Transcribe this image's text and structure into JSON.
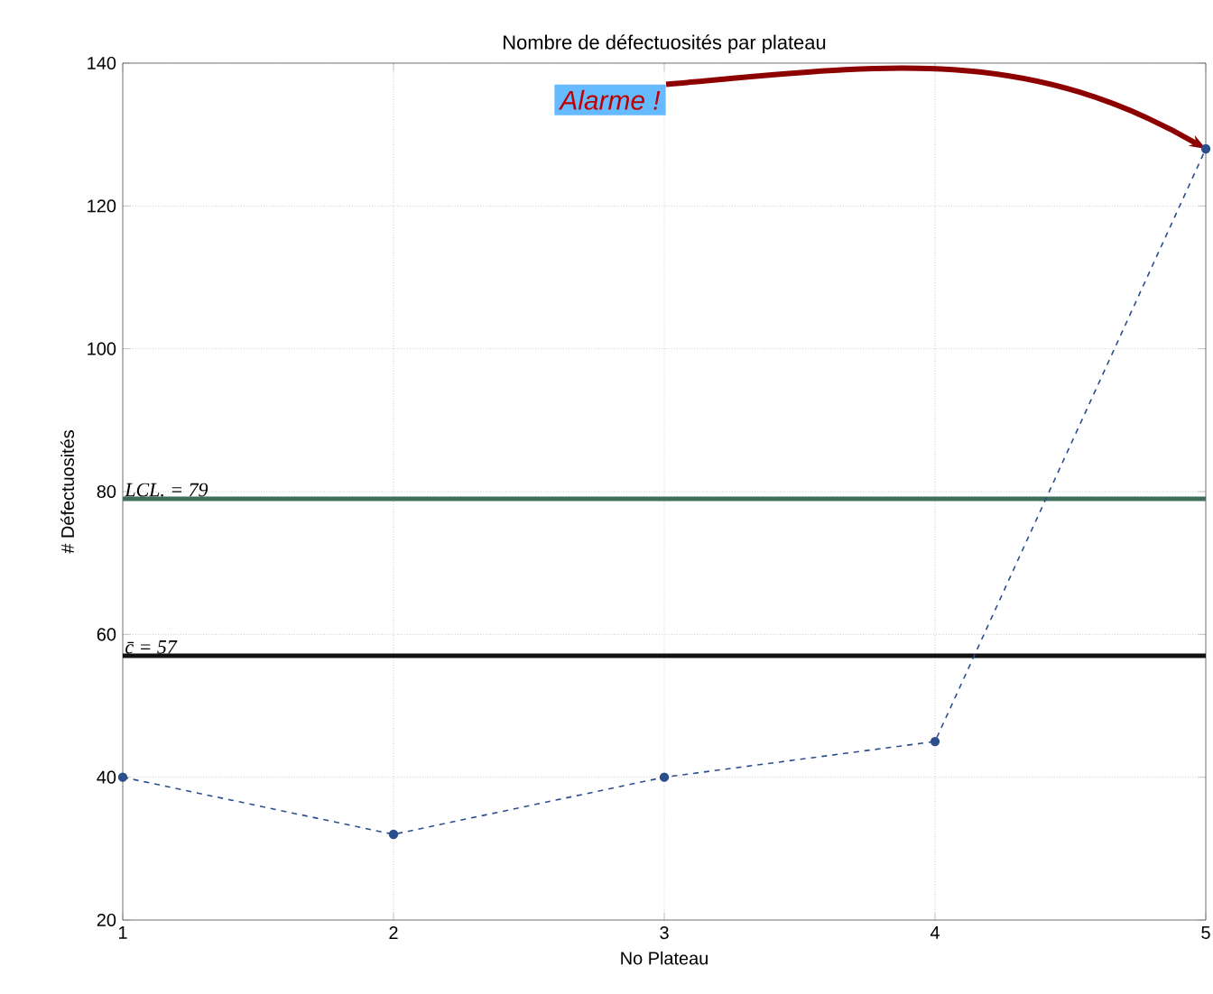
{
  "chart_data": {
    "type": "line",
    "title": "Nombre de défectuosités par plateau",
    "xlabel": "No Plateau",
    "ylabel": "# Défectuosités",
    "x": [
      1,
      2,
      3,
      4,
      5
    ],
    "series": [
      {
        "color": "#2b4e8c",
        "values": [
          40,
          32,
          40,
          45,
          128
        ]
      }
    ],
    "xlim": [
      1,
      5
    ],
    "ylim": [
      20,
      140
    ],
    "xticks": [
      1,
      2,
      3,
      4,
      5
    ],
    "yticks": [
      20,
      40,
      60,
      80,
      100,
      120,
      140
    ],
    "grid": true,
    "marker": "circle",
    "line_style": "dashed",
    "ref_lines": [
      {
        "axis": "y",
        "value": 79,
        "label": "LCL. = 79",
        "color": "#3f6f5a"
      },
      {
        "axis": "y",
        "value": 57,
        "label": "c̄ = 57",
        "color": "#111111"
      }
    ],
    "annotations": [
      {
        "text": "Alarme !",
        "x": 5,
        "y": 128
      }
    ]
  }
}
